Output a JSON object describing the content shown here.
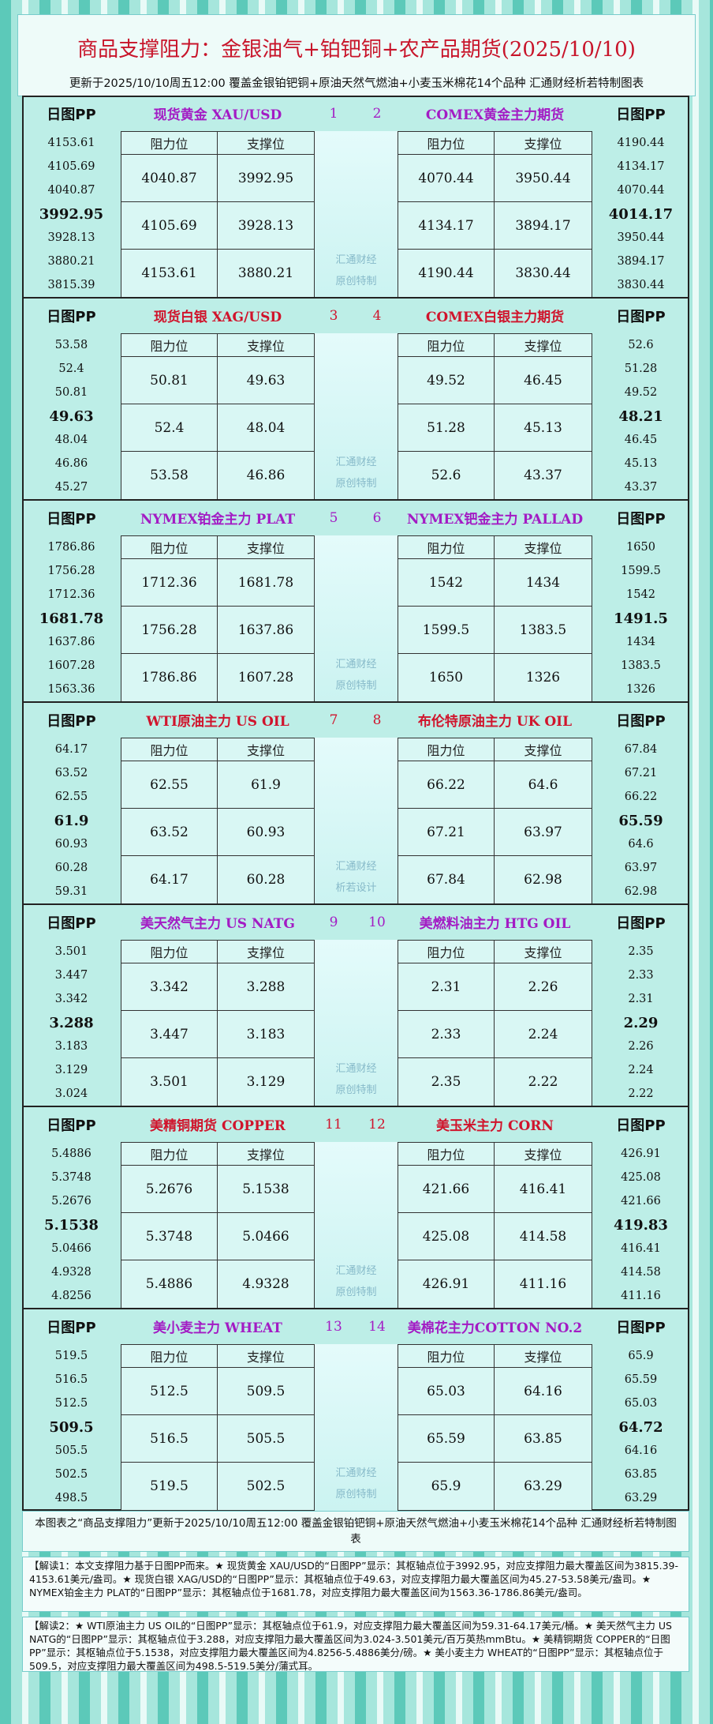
{
  "header": {
    "title": "商品支撑阻力：金银油气+铂钯铜+农产品期货(2025/10/10)",
    "subtitle": "更新于2025/10/10周五12:00 覆盖金银铂钯铜+原油天然气燃油+小麦玉米棉花14个品种 汇通财经析若特制图表"
  },
  "labels": {
    "pp": "日图PP",
    "resistance": "阻力位",
    "support": "支撑位"
  },
  "blocks": [
    {
      "color": "#a31cc4",
      "numbers": [
        "1",
        "2"
      ],
      "watermark": [
        "汇通财经",
        "原创特制"
      ],
      "left": {
        "name": "现货黄金 XAU/USD",
        "pp": [
          "4153.61",
          "4105.69",
          "4040.87",
          "3992.95",
          "3928.13",
          "3880.21",
          "3815.39"
        ],
        "rows": [
          [
            "4040.87",
            "3992.95"
          ],
          [
            "4105.69",
            "3928.13"
          ],
          [
            "4153.61",
            "3880.21"
          ]
        ]
      },
      "right": {
        "name": "COMEX黄金主力期货",
        "pp": [
          "4190.44",
          "4134.17",
          "4070.44",
          "4014.17",
          "3950.44",
          "3894.17",
          "3830.44"
        ],
        "rows": [
          [
            "4070.44",
            "3950.44"
          ],
          [
            "4134.17",
            "3894.17"
          ],
          [
            "4190.44",
            "3830.44"
          ]
        ]
      }
    },
    {
      "color": "#d0142c",
      "numbers": [
        "3",
        "4"
      ],
      "watermark": [
        "汇通财经",
        "原创特制"
      ],
      "left": {
        "name": "现货白银 XAG/USD",
        "pp": [
          "53.58",
          "52.4",
          "50.81",
          "49.63",
          "48.04",
          "46.86",
          "45.27"
        ],
        "rows": [
          [
            "50.81",
            "49.63"
          ],
          [
            "52.4",
            "48.04"
          ],
          [
            "53.58",
            "46.86"
          ]
        ]
      },
      "right": {
        "name": "COMEX白银主力期货",
        "pp": [
          "52.6",
          "51.28",
          "49.52",
          "48.21",
          "46.45",
          "45.13",
          "43.37"
        ],
        "rows": [
          [
            "49.52",
            "46.45"
          ],
          [
            "51.28",
            "45.13"
          ],
          [
            "52.6",
            "43.37"
          ]
        ]
      }
    },
    {
      "color": "#a31cc4",
      "numbers": [
        "5",
        "6"
      ],
      "watermark": [
        "汇通财经",
        "原创特制"
      ],
      "left": {
        "name": "NYMEX铂金主力 PLAT",
        "pp": [
          "1786.86",
          "1756.28",
          "1712.36",
          "1681.78",
          "1637.86",
          "1607.28",
          "1563.36"
        ],
        "rows": [
          [
            "1712.36",
            "1681.78"
          ],
          [
            "1756.28",
            "1637.86"
          ],
          [
            "1786.86",
            "1607.28"
          ]
        ]
      },
      "right": {
        "name": "NYMEX钯金主力 PALLAD",
        "pp": [
          "1650",
          "1599.5",
          "1542",
          "1491.5",
          "1434",
          "1383.5",
          "1326"
        ],
        "rows": [
          [
            "1542",
            "1434"
          ],
          [
            "1599.5",
            "1383.5"
          ],
          [
            "1650",
            "1326"
          ]
        ]
      }
    },
    {
      "color": "#d0142c",
      "numbers": [
        "7",
        "8"
      ],
      "watermark": [
        "汇通财经",
        "析若设计"
      ],
      "left": {
        "name": "WTI原油主力 US OIL",
        "pp": [
          "64.17",
          "63.52",
          "62.55",
          "61.9",
          "60.93",
          "60.28",
          "59.31"
        ],
        "rows": [
          [
            "62.55",
            "61.9"
          ],
          [
            "63.52",
            "60.93"
          ],
          [
            "64.17",
            "60.28"
          ]
        ]
      },
      "right": {
        "name": "布伦特原油主力 UK OIL",
        "pp": [
          "67.84",
          "67.21",
          "66.22",
          "65.59",
          "64.6",
          "63.97",
          "62.98"
        ],
        "rows": [
          [
            "66.22",
            "64.6"
          ],
          [
            "67.21",
            "63.97"
          ],
          [
            "67.84",
            "62.98"
          ]
        ]
      }
    },
    {
      "color": "#a31cc4",
      "numbers": [
        "9",
        "10"
      ],
      "watermark": [
        "汇通财经",
        "原创特制"
      ],
      "left": {
        "name": "美天然气主力 US NATG",
        "pp": [
          "3.501",
          "3.447",
          "3.342",
          "3.288",
          "3.183",
          "3.129",
          "3.024"
        ],
        "rows": [
          [
            "3.342",
            "3.288"
          ],
          [
            "3.447",
            "3.183"
          ],
          [
            "3.501",
            "3.129"
          ]
        ]
      },
      "right": {
        "name": "美燃料油主力 HTG OIL",
        "pp": [
          "2.35",
          "2.33",
          "2.31",
          "2.29",
          "2.26",
          "2.24",
          "2.22"
        ],
        "rows": [
          [
            "2.31",
            "2.26"
          ],
          [
            "2.33",
            "2.24"
          ],
          [
            "2.35",
            "2.22"
          ]
        ]
      }
    },
    {
      "color": "#d0142c",
      "numbers": [
        "11",
        "12"
      ],
      "watermark": [
        "汇通财经",
        "原创特制"
      ],
      "left": {
        "name": "美精铜期货 COPPER",
        "pp": [
          "5.4886",
          "5.3748",
          "5.2676",
          "5.1538",
          "5.0466",
          "4.9328",
          "4.8256"
        ],
        "rows": [
          [
            "5.2676",
            "5.1538"
          ],
          [
            "5.3748",
            "5.0466"
          ],
          [
            "5.4886",
            "4.9328"
          ]
        ]
      },
      "right": {
        "name": "美玉米主力 CORN",
        "pp": [
          "426.91",
          "425.08",
          "421.66",
          "419.83",
          "416.41",
          "414.58",
          "411.16"
        ],
        "rows": [
          [
            "421.66",
            "416.41"
          ],
          [
            "425.08",
            "414.58"
          ],
          [
            "426.91",
            "411.16"
          ]
        ]
      }
    },
    {
      "color": "#a31cc4",
      "numbers": [
        "13",
        "14"
      ],
      "watermark": [
        "汇通财经",
        "原创特制"
      ],
      "left": {
        "name": "美小麦主力 WHEAT",
        "pp": [
          "519.5",
          "516.5",
          "512.5",
          "509.5",
          "505.5",
          "502.5",
          "498.5"
        ],
        "rows": [
          [
            "512.5",
            "509.5"
          ],
          [
            "516.5",
            "505.5"
          ],
          [
            "519.5",
            "502.5"
          ]
        ]
      },
      "right": {
        "name": "美棉花主力COTTON NO.2",
        "pp": [
          "65.9",
          "65.59",
          "65.03",
          "64.72",
          "64.16",
          "63.85",
          "63.29"
        ],
        "rows": [
          [
            "65.03",
            "64.16"
          ],
          [
            "65.59",
            "63.85"
          ],
          [
            "65.9",
            "63.29"
          ]
        ]
      }
    }
  ],
  "footer": {
    "caption": "本图表之“商品支撑阻力”更新于2025/10/10周五12:00 覆盖金银铂钯铜+原油天然气燃油+小麦玉米棉花14个品种 汇通财经析若特制图表",
    "notes": [
      "【解读1：本文支撑阻力基于日图PP而来。★ 现货黄金 XAU/USD的“日图PP”显示：其枢轴点位于3992.95，对应支撑阻力最大覆盖区间为3815.39-4153.61美元/盎司。★ 现货白银 XAG/USD的“日图PP”显示：其枢轴点位于49.63，对应支撑阻力最大覆盖区间为45.27-53.58美元/盎司。★ NYMEX铂金主力 PLAT的“日图PP”显示：其枢轴点位于1681.78，对应支撑阻力最大覆盖区间为1563.36-1786.86美元/盎司。",
      "【解读2：★ WTI原油主力 US OIL的“日图PP”显示：其枢轴点位于61.9，对应支撑阻力最大覆盖区间为59.31-64.17美元/桶。★ 美天然气主力 US NATG的“日图PP”显示：其枢轴点位于3.288，对应支撑阻力最大覆盖区间为3.024-3.501美元/百万英热mmBtu。★ 美精铜期货 COPPER的“日图PP”显示：其枢轴点位于5.1538，对应支撑阻力最大覆盖区间为4.8256-5.4886美分/磅。★ 美小麦主力 WHEAT的“日图PP”显示：其枢轴点位于509.5，对应支撑阻力最大覆盖区间为498.5-519.5美分/蒲式耳。"
    ]
  }
}
